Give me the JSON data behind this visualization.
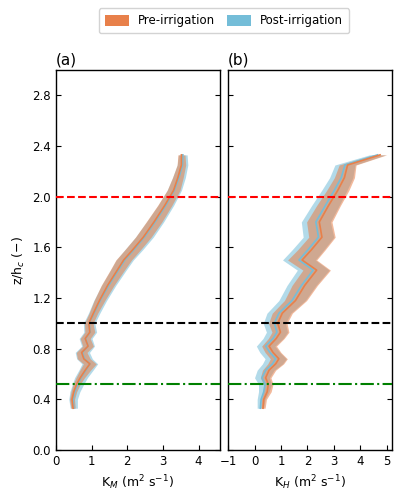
{
  "title_a": "(a)",
  "title_b": "(b)",
  "ylabel": "z/h$_c$ (−)",
  "xlabel_a": "K$_M$ (m$^2$ s$^{-1}$)",
  "xlabel_b": "K$_H$ (m$^2$ s$^{-1}$)",
  "hline_red": 2.0,
  "hline_black": 1.0,
  "hline_green": 0.52,
  "legend_pre": "Pre-irrigation",
  "legend_post": "Post-irrigation",
  "color_pre": "#E8804A",
  "color_post": "#74BDD8",
  "alpha_shade": 0.55,
  "ylim": [
    0.0,
    3.0
  ],
  "yticks": [
    0.0,
    0.4,
    0.8,
    1.2,
    1.6,
    2.0,
    2.4,
    2.8
  ],
  "xlim_a": [
    0.0,
    4.6
  ],
  "xlim_b": [
    -1.0,
    5.2
  ],
  "xticks_a": [
    0,
    1,
    2,
    3,
    4
  ],
  "xticks_b": [
    -1,
    0,
    1,
    2,
    3,
    4,
    5
  ],
  "z_a": [
    0.33,
    0.4,
    0.46,
    0.52,
    0.57,
    0.63,
    0.68,
    0.72,
    0.77,
    0.82,
    0.88,
    0.93,
    1.0,
    1.08,
    1.18,
    1.3,
    1.42,
    1.5,
    1.58,
    1.68,
    1.8,
    1.93,
    2.05,
    2.15,
    2.25,
    2.33
  ],
  "pre_mean_a": [
    0.48,
    0.45,
    0.5,
    0.58,
    0.68,
    0.82,
    0.95,
    0.78,
    0.72,
    0.9,
    0.82,
    0.95,
    0.92,
    1.05,
    1.22,
    1.45,
    1.72,
    1.9,
    2.15,
    2.45,
    2.75,
    3.05,
    3.3,
    3.42,
    3.52,
    3.52
  ],
  "pre_std_a": [
    0.06,
    0.07,
    0.08,
    0.1,
    0.12,
    0.15,
    0.18,
    0.18,
    0.15,
    0.15,
    0.14,
    0.14,
    0.12,
    0.12,
    0.15,
    0.18,
    0.2,
    0.22,
    0.22,
    0.22,
    0.22,
    0.2,
    0.18,
    0.15,
    0.12,
    0.1
  ],
  "post_mean_a": [
    0.5,
    0.48,
    0.53,
    0.62,
    0.7,
    0.84,
    0.95,
    0.8,
    0.74,
    0.9,
    0.83,
    0.96,
    0.93,
    1.07,
    1.24,
    1.48,
    1.75,
    1.93,
    2.18,
    2.48,
    2.78,
    3.08,
    3.32,
    3.45,
    3.55,
    3.56
  ],
  "post_std_a": [
    0.1,
    0.12,
    0.14,
    0.16,
    0.18,
    0.2,
    0.22,
    0.22,
    0.2,
    0.18,
    0.18,
    0.18,
    0.16,
    0.16,
    0.18,
    0.2,
    0.22,
    0.24,
    0.25,
    0.25,
    0.24,
    0.22,
    0.2,
    0.18,
    0.15,
    0.12
  ],
  "z_b": [
    0.33,
    0.4,
    0.46,
    0.52,
    0.57,
    0.63,
    0.68,
    0.72,
    0.77,
    0.82,
    0.88,
    0.93,
    1.0,
    1.08,
    1.18,
    1.3,
    1.42,
    1.5,
    1.58,
    1.68,
    1.8,
    1.93,
    2.05,
    2.15,
    2.25,
    2.33
  ],
  "pre_mean_b": [
    0.32,
    0.35,
    0.48,
    0.52,
    0.42,
    0.55,
    0.8,
    0.92,
    0.7,
    0.55,
    0.82,
    0.98,
    0.88,
    1.05,
    1.55,
    1.9,
    2.35,
    1.8,
    2.15,
    2.55,
    2.45,
    2.8,
    3.15,
    3.4,
    3.52,
    4.75
  ],
  "pre_std_b": [
    0.08,
    0.1,
    0.15,
    0.18,
    0.2,
    0.25,
    0.3,
    0.32,
    0.3,
    0.28,
    0.3,
    0.32,
    0.35,
    0.38,
    0.42,
    0.48,
    0.52,
    0.55,
    0.52,
    0.5,
    0.48,
    0.45,
    0.42,
    0.38,
    0.32,
    0.25
  ],
  "post_mean_b": [
    0.22,
    0.25,
    0.35,
    0.4,
    0.28,
    0.42,
    0.68,
    0.8,
    0.58,
    0.42,
    0.7,
    0.85,
    0.75,
    0.92,
    1.42,
    1.78,
    2.22,
    1.68,
    2.02,
    2.42,
    2.32,
    2.68,
    3.02,
    3.28,
    3.42,
    4.65
  ],
  "post_std_b": [
    0.12,
    0.15,
    0.2,
    0.25,
    0.28,
    0.32,
    0.38,
    0.4,
    0.38,
    0.35,
    0.38,
    0.4,
    0.42,
    0.45,
    0.5,
    0.55,
    0.6,
    0.62,
    0.6,
    0.58,
    0.55,
    0.52,
    0.48,
    0.44,
    0.38,
    0.3
  ]
}
